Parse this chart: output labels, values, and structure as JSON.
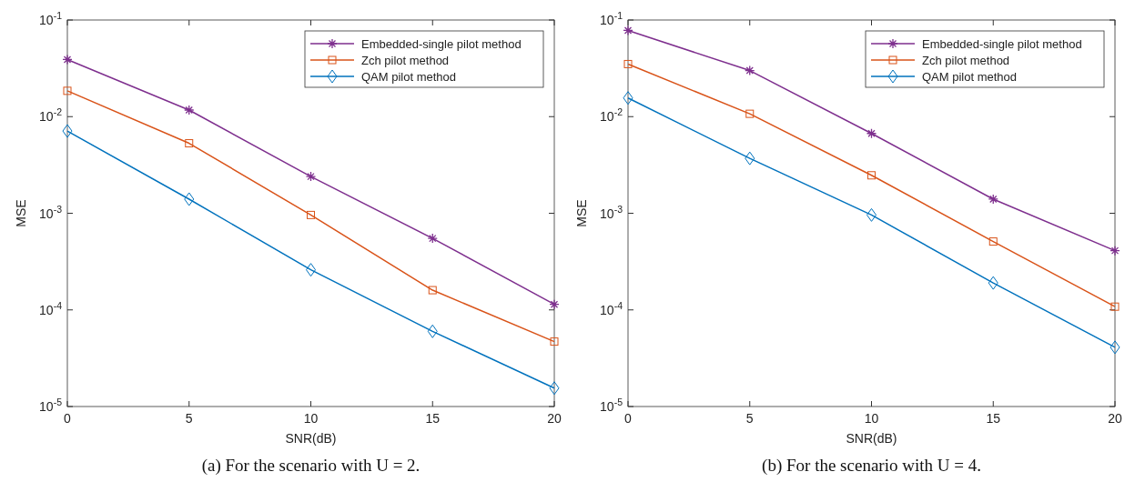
{
  "chart_data": [
    {
      "type": "line",
      "title": "(a) For the scenario with U = 2.",
      "xlabel": "SNR(dB)",
      "ylabel": "MSE",
      "x": [
        0,
        5,
        10,
        15,
        20
      ],
      "log": "y",
      "xlim": [
        0,
        20
      ],
      "xticks": [
        0,
        5,
        10,
        15,
        20
      ],
      "ylim": [
        1e-05,
        0.1
      ],
      "yticks": [
        {
          "value": 1e-05,
          "label": "10$^{-5}$"
        },
        {
          "value": 0.0001,
          "label": "10$^{-4}$"
        },
        {
          "value": 0.001,
          "label": "10$^{-3}$"
        },
        {
          "value": 0.01,
          "label": "10$^{-2}$"
        },
        {
          "value": 0.1,
          "label": "10$^{-1}$"
        }
      ],
      "legend": "top right",
      "series": [
        {
          "name": "Embedded-single pilot method",
          "color": "#7e2f8e",
          "marker": "cross",
          "values": [
            0.039,
            0.0117,
            0.0024,
            0.00055,
            0.000114
          ]
        },
        {
          "name": "Zch pilot method",
          "color": "#d95319",
          "marker": "square",
          "values": [
            0.0185,
            0.0053,
            0.00096,
            0.00016,
            4.7e-05
          ]
        },
        {
          "name": "QAM pilot method",
          "color": "#0072bd",
          "marker": "diamond",
          "values": [
            0.0071,
            0.0014,
            0.00026,
            6e-05,
            1.55e-05
          ]
        }
      ]
    },
    {
      "type": "line",
      "title": "(b) For the scenario with U = 4.",
      "xlabel": "SNR(dB)",
      "ylabel": "MSE",
      "x": [
        0,
        5,
        10,
        15,
        20
      ],
      "log": "y",
      "xlim": [
        0,
        20
      ],
      "xticks": [
        0,
        5,
        10,
        15,
        20
      ],
      "ylim": [
        1e-05,
        0.1
      ],
      "yticks": [
        {
          "value": 1e-05,
          "label": "10$^{-5}$"
        },
        {
          "value": 0.0001,
          "label": "10$^{-4}$"
        },
        {
          "value": 0.001,
          "label": "10$^{-3}$"
        },
        {
          "value": 0.01,
          "label": "10$^{-2}$"
        },
        {
          "value": 0.1,
          "label": "10$^{-1}$"
        }
      ],
      "legend": "top right",
      "series": [
        {
          "name": "Embedded-single pilot method",
          "color": "#7e2f8e",
          "marker": "cross",
          "values": [
            0.078,
            0.03,
            0.0067,
            0.0014,
            0.00041
          ]
        },
        {
          "name": "Zch pilot method",
          "color": "#d95319",
          "marker": "square",
          "values": [
            0.035,
            0.0107,
            0.00247,
            0.00051,
            0.000108
          ]
        },
        {
          "name": "QAM pilot method",
          "color": "#0072bd",
          "marker": "diamond",
          "values": [
            0.0156,
            0.0037,
            0.00096,
            0.00019,
            4.1e-05
          ]
        }
      ]
    }
  ]
}
